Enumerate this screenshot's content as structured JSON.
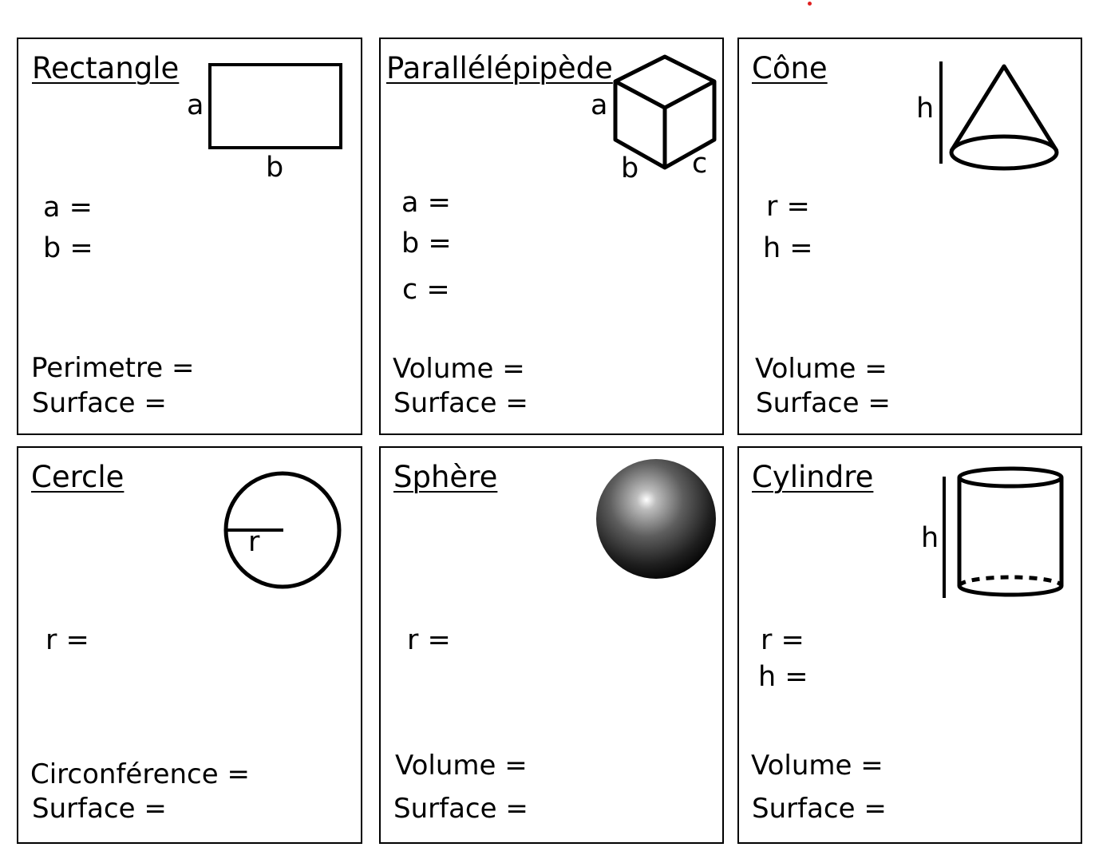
{
  "colors": {
    "border": "#000000",
    "accent_dot": "#e02020"
  },
  "cards": {
    "rectangle": {
      "title": "Rectangle",
      "labels": {
        "a": "a",
        "b": "b"
      },
      "vars": [
        "a =",
        "b ="
      ],
      "results": [
        "Perimetre =",
        "Surface ="
      ]
    },
    "parallelepiped": {
      "title": "Parallélépipède",
      "labels": {
        "a": "a",
        "b": "b",
        "c": "c"
      },
      "vars": [
        "a =",
        "b =",
        "c ="
      ],
      "results": [
        "Volume =",
        "Surface ="
      ]
    },
    "cone": {
      "title": "Cône",
      "labels": {
        "h": "h"
      },
      "vars": [
        "r =",
        "h ="
      ],
      "results": [
        "Volume =",
        "Surface ="
      ]
    },
    "circle": {
      "title": "Cercle",
      "labels": {
        "r": "r"
      },
      "vars": [
        "r ="
      ],
      "results": [
        "Circonférence =",
        "Surface ="
      ]
    },
    "sphere": {
      "title": "Sphère",
      "vars": [
        "r ="
      ],
      "results": [
        "Volume =",
        "Surface ="
      ]
    },
    "cylinder": {
      "title": "Cylindre",
      "labels": {
        "h": "h"
      },
      "vars": [
        "r =",
        "h ="
      ],
      "results": [
        "Volume =",
        "Surface ="
      ]
    }
  }
}
